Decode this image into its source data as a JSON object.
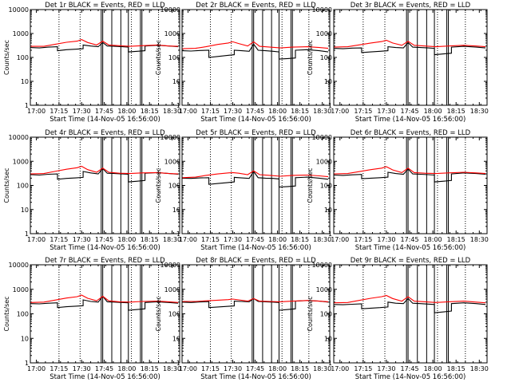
{
  "chart_data": [
    {
      "type": "line",
      "title": "Det 1r BLACK = Events, RED = LLD",
      "xlabel": "Start Time (14-Nov-05 16:56:00)",
      "ylabel": "Counts/sec",
      "yscale": "log",
      "ylim": [
        1,
        10000
      ],
      "x_ticks": [
        "17:00",
        "17:15",
        "17:30",
        "17:45",
        "18:00",
        "18:15",
        "18:30"
      ],
      "y_ticks": [
        "1",
        "10",
        "100",
        "1000",
        "10000"
      ],
      "series": [
        {
          "color": "#000000",
          "x": [
            "16:56",
            "17:02",
            "17:08",
            "17:14",
            "17:14",
            "17:20",
            "17:26",
            "17:31",
            "17:31",
            "17:36",
            "17:41",
            "17:44",
            "17:47",
            "17:52",
            "17:57",
            "18:01",
            "18:01",
            "18:07",
            "18:12",
            "18:12",
            "18:20",
            "18:28",
            "18:34"
          ],
          "y": [
            260,
            250,
            270,
            280,
            190,
            210,
            220,
            230,
            330,
            300,
            280,
            420,
            300,
            290,
            280,
            270,
            170,
            180,
            190,
            300,
            320,
            300,
            280
          ]
        },
        {
          "color": "#ff0000",
          "x": [
            "16:56",
            "17:05",
            "17:12",
            "17:20",
            "17:27",
            "17:30",
            "17:34",
            "17:40",
            "17:44",
            "17:48",
            "17:55",
            "18:02",
            "18:10",
            "18:20",
            "18:28",
            "18:34"
          ],
          "y": [
            290,
            290,
            350,
            430,
            480,
            560,
            420,
            330,
            480,
            330,
            310,
            290,
            310,
            330,
            300,
            290
          ]
        }
      ]
    },
    {
      "type": "line",
      "title": "Det 2r BLACK = Events, RED = LLD",
      "xlabel": "Start Time (14-Nov-05 16:56:00)",
      "ylabel": "Counts/sec",
      "yscale": "log",
      "ylim": [
        1,
        10000
      ],
      "x_ticks": [
        "17:00",
        "17:15",
        "17:30",
        "17:45",
        "18:00",
        "18:15",
        "18:30"
      ],
      "y_ticks": [
        "1",
        "10",
        "100",
        "1000",
        "10000"
      ],
      "series": [
        {
          "color": "#000000",
          "x": [
            "16:56",
            "17:02",
            "17:08",
            "17:14",
            "17:14",
            "17:20",
            "17:26",
            "17:31",
            "17:31",
            "17:36",
            "17:41",
            "17:44",
            "17:47",
            "17:52",
            "17:57",
            "18:01",
            "18:01",
            "18:07",
            "18:12",
            "18:12",
            "18:20",
            "18:28",
            "18:34"
          ],
          "y": [
            190,
            185,
            195,
            200,
            100,
            110,
            120,
            130,
            200,
            190,
            180,
            360,
            200,
            190,
            180,
            170,
            85,
            90,
            95,
            200,
            210,
            190,
            170
          ]
        },
        {
          "color": "#ff0000",
          "x": [
            "16:56",
            "17:05",
            "17:12",
            "17:20",
            "17:27",
            "17:30",
            "17:34",
            "17:40",
            "17:44",
            "17:48",
            "17:55",
            "18:02",
            "18:10",
            "18:20",
            "18:28",
            "18:34"
          ],
          "y": [
            230,
            240,
            280,
            350,
            400,
            450,
            380,
            300,
            450,
            290,
            270,
            250,
            270,
            280,
            260,
            240
          ]
        }
      ]
    },
    {
      "type": "line",
      "title": "Det 3r BLACK = Events, RED = LLD",
      "xlabel": "Start Time (14-Nov-05 16:56:00)",
      "ylabel": "Counts/sec",
      "yscale": "log",
      "ylim": [
        1,
        10000
      ],
      "x_ticks": [
        "17:00",
        "17:15",
        "17:30",
        "17:45",
        "18:00",
        "18:15",
        "18:30"
      ],
      "y_ticks": [
        "1",
        "10",
        "100",
        "1000",
        "10000"
      ],
      "series": [
        {
          "color": "#000000",
          "x": [
            "16:56",
            "17:02",
            "17:08",
            "17:14",
            "17:14",
            "17:20",
            "17:26",
            "17:31",
            "17:31",
            "17:36",
            "17:41",
            "17:44",
            "17:47",
            "17:52",
            "17:57",
            "18:01",
            "18:01",
            "18:07",
            "18:12",
            "18:12",
            "18:20",
            "18:28",
            "18:34"
          ],
          "y": [
            240,
            230,
            245,
            250,
            160,
            170,
            180,
            190,
            280,
            260,
            250,
            420,
            270,
            260,
            250,
            240,
            130,
            140,
            150,
            270,
            290,
            270,
            250
          ]
        },
        {
          "color": "#ff0000",
          "x": [
            "16:56",
            "17:05",
            "17:12",
            "17:20",
            "17:27",
            "17:30",
            "17:34",
            "17:40",
            "17:44",
            "17:48",
            "17:55",
            "18:02",
            "18:10",
            "18:20",
            "18:28",
            "18:34"
          ],
          "y": [
            270,
            280,
            330,
            400,
            460,
            520,
            400,
            320,
            470,
            320,
            300,
            280,
            300,
            320,
            300,
            280
          ]
        }
      ]
    },
    {
      "type": "line",
      "title": "Det 4r BLACK = Events, RED = LLD",
      "xlabel": "Start Time (14-Nov-05 16:56:00)",
      "ylabel": "Counts/sec",
      "yscale": "log",
      "ylim": [
        1,
        10000
      ],
      "x_ticks": [
        "17:00",
        "17:15",
        "17:30",
        "17:45",
        "18:00",
        "18:15",
        "18:30"
      ],
      "y_ticks": [
        "1",
        "10",
        "100",
        "1000",
        "10000"
      ],
      "series": [
        {
          "color": "#000000",
          "x": [
            "16:56",
            "17:02",
            "17:08",
            "17:14",
            "17:14",
            "17:20",
            "17:26",
            "17:31",
            "17:31",
            "17:36",
            "17:41",
            "17:44",
            "17:47",
            "17:52",
            "17:57",
            "18:01",
            "18:01",
            "18:07",
            "18:12",
            "18:12",
            "18:20",
            "18:28",
            "18:34"
          ],
          "y": [
            280,
            270,
            290,
            300,
            180,
            195,
            205,
            215,
            380,
            330,
            300,
            500,
            320,
            310,
            300,
            290,
            140,
            150,
            160,
            320,
            340,
            310,
            290
          ]
        },
        {
          "color": "#ff0000",
          "x": [
            "16:56",
            "17:05",
            "17:12",
            "17:20",
            "17:27",
            "17:30",
            "17:34",
            "17:40",
            "17:44",
            "17:48",
            "17:55",
            "18:02",
            "18:10",
            "18:20",
            "18:28",
            "18:34"
          ],
          "y": [
            300,
            310,
            380,
            470,
            540,
            620,
            450,
            350,
            520,
            350,
            320,
            310,
            330,
            340,
            310,
            300
          ]
        }
      ]
    },
    {
      "type": "line",
      "title": "Det 5r BLACK = Events, RED = LLD",
      "xlabel": "Start Time (14-Nov-05 16:56:00)",
      "ylabel": "Counts/sec",
      "yscale": "log",
      "ylim": [
        1,
        10000
      ],
      "x_ticks": [
        "17:00",
        "17:15",
        "17:30",
        "17:45",
        "18:00",
        "18:15",
        "18:30"
      ],
      "y_ticks": [
        "1",
        "10",
        "100",
        "1000",
        "10000"
      ],
      "series": [
        {
          "color": "#000000",
          "x": [
            "16:56",
            "17:02",
            "17:08",
            "17:14",
            "17:14",
            "17:20",
            "17:26",
            "17:31",
            "17:31",
            "17:36",
            "17:41",
            "17:44",
            "17:47",
            "17:52",
            "17:57",
            "18:01",
            "18:01",
            "18:07",
            "18:12",
            "18:12",
            "18:20",
            "18:28",
            "18:34"
          ],
          "y": [
            200,
            195,
            205,
            210,
            110,
            120,
            130,
            140,
            215,
            205,
            195,
            380,
            210,
            200,
            195,
            185,
            85,
            90,
            95,
            210,
            220,
            200,
            180
          ]
        },
        {
          "color": "#ff0000",
          "x": [
            "16:56",
            "17:05",
            "17:12",
            "17:20",
            "17:27",
            "17:30",
            "17:34",
            "17:40",
            "17:44",
            "17:48",
            "17:55",
            "18:02",
            "18:10",
            "18:20",
            "18:28",
            "18:34"
          ],
          "y": [
            210,
            220,
            260,
            300,
            330,
            340,
            320,
            280,
            400,
            280,
            260,
            240,
            260,
            270,
            250,
            230
          ]
        }
      ]
    },
    {
      "type": "line",
      "title": "Det 6r BLACK = Events, RED = LLD",
      "xlabel": "Start Time (14-Nov-05 16:56:00)",
      "ylabel": "Counts/sec",
      "yscale": "log",
      "ylim": [
        1,
        10000
      ],
      "x_ticks": [
        "17:00",
        "17:15",
        "17:30",
        "17:45",
        "18:00",
        "18:15",
        "18:30"
      ],
      "y_ticks": [
        "1",
        "10",
        "100",
        "1000",
        "10000"
      ],
      "series": [
        {
          "color": "#000000",
          "x": [
            "16:56",
            "17:02",
            "17:08",
            "17:14",
            "17:14",
            "17:20",
            "17:26",
            "17:31",
            "17:31",
            "17:36",
            "17:41",
            "17:44",
            "17:47",
            "17:52",
            "17:57",
            "18:01",
            "18:01",
            "18:07",
            "18:12",
            "18:12",
            "18:20",
            "18:28",
            "18:34"
          ],
          "y": [
            270,
            260,
            275,
            285,
            190,
            200,
            210,
            220,
            350,
            310,
            290,
            480,
            300,
            290,
            280,
            270,
            140,
            150,
            160,
            300,
            330,
            310,
            290
          ]
        },
        {
          "color": "#ff0000",
          "x": [
            "16:56",
            "17:05",
            "17:12",
            "17:20",
            "17:27",
            "17:30",
            "17:34",
            "17:40",
            "17:44",
            "17:48",
            "17:55",
            "18:02",
            "18:10",
            "18:20",
            "18:28",
            "18:34"
          ],
          "y": [
            300,
            310,
            370,
            450,
            520,
            600,
            440,
            340,
            520,
            340,
            320,
            310,
            330,
            350,
            330,
            310
          ]
        }
      ]
    },
    {
      "type": "line",
      "title": "Det 7r BLACK = Events, RED = LLD",
      "xlabel": "Start Time (14-Nov-05 16:56:00)",
      "ylabel": "Counts/sec",
      "yscale": "log",
      "ylim": [
        1,
        10000
      ],
      "x_ticks": [
        "17:00",
        "17:15",
        "17:30",
        "17:45",
        "18:00",
        "18:15",
        "18:30"
      ],
      "y_ticks": [
        "1",
        "10",
        "100",
        "1000",
        "10000"
      ],
      "series": [
        {
          "color": "#000000",
          "x": [
            "16:56",
            "17:02",
            "17:08",
            "17:14",
            "17:14",
            "17:20",
            "17:26",
            "17:31",
            "17:31",
            "17:36",
            "17:41",
            "17:44",
            "17:47",
            "17:52",
            "17:57",
            "18:01",
            "18:01",
            "18:07",
            "18:12",
            "18:12",
            "18:20",
            "18:28",
            "18:34"
          ],
          "y": [
            260,
            255,
            270,
            280,
            180,
            195,
            205,
            215,
            370,
            320,
            300,
            520,
            310,
            300,
            290,
            280,
            140,
            150,
            160,
            290,
            310,
            290,
            270
          ]
        },
        {
          "color": "#ff0000",
          "x": [
            "16:56",
            "17:05",
            "17:12",
            "17:20",
            "17:27",
            "17:30",
            "17:34",
            "17:40",
            "17:44",
            "17:48",
            "17:55",
            "18:02",
            "18:10",
            "18:20",
            "18:28",
            "18:34"
          ],
          "y": [
            290,
            300,
            360,
            440,
            500,
            580,
            430,
            340,
            520,
            340,
            310,
            300,
            320,
            330,
            310,
            290
          ]
        }
      ]
    },
    {
      "type": "line",
      "title": "Det 8r BLACK = Events, RED = LLD",
      "xlabel": "Start Time (14-Nov-05 16:56:00)",
      "ylabel": "Counts/sec",
      "yscale": "log",
      "ylim": [
        1,
        10000
      ],
      "x_ticks": [
        "17:00",
        "17:15",
        "17:30",
        "17:45",
        "18:00",
        "18:15",
        "18:30"
      ],
      "y_ticks": [
        "1",
        "10",
        "100",
        "1000",
        "10000"
      ],
      "series": [
        {
          "color": "#000000",
          "x": [
            "16:56",
            "17:02",
            "17:08",
            "17:14",
            "17:14",
            "17:20",
            "17:26",
            "17:31",
            "17:31",
            "17:36",
            "17:41",
            "17:44",
            "17:47",
            "17:52",
            "17:57",
            "18:01",
            "18:01",
            "18:07",
            "18:12",
            "18:12",
            "18:20",
            "18:28",
            "18:34"
          ],
          "y": [
            300,
            290,
            305,
            315,
            180,
            190,
            200,
            210,
            330,
            320,
            310,
            420,
            320,
            310,
            300,
            290,
            140,
            150,
            160,
            330,
            350,
            330,
            300
          ]
        },
        {
          "color": "#ff0000",
          "x": [
            "16:56",
            "17:05",
            "17:12",
            "17:20",
            "17:27",
            "17:30",
            "17:34",
            "17:40",
            "17:44",
            "17:48",
            "17:55",
            "18:02",
            "18:10",
            "18:20",
            "18:28",
            "18:34"
          ],
          "y": [
            320,
            320,
            340,
            360,
            380,
            400,
            370,
            330,
            420,
            330,
            320,
            310,
            330,
            350,
            330,
            310
          ]
        }
      ]
    },
    {
      "type": "line",
      "title": "Det 9r BLACK = Events, RED = LLD",
      "xlabel": "Start Time (14-Nov-05 16:56:00)",
      "ylabel": "Counts/sec",
      "yscale": "log",
      "ylim": [
        1,
        10000
      ],
      "x_ticks": [
        "17:00",
        "17:15",
        "17:30",
        "17:45",
        "18:00",
        "18:15",
        "18:30"
      ],
      "y_ticks": [
        "1",
        "10",
        "100",
        "1000",
        "10000"
      ],
      "series": [
        {
          "color": "#000000",
          "x": [
            "16:56",
            "17:02",
            "17:08",
            "17:14",
            "17:14",
            "17:20",
            "17:26",
            "17:31",
            "17:31",
            "17:36",
            "17:41",
            "17:44",
            "17:47",
            "17:52",
            "17:57",
            "18:01",
            "18:01",
            "18:07",
            "18:12",
            "18:12",
            "18:20",
            "18:28",
            "18:34"
          ],
          "y": [
            240,
            235,
            245,
            255,
            160,
            170,
            180,
            190,
            300,
            270,
            260,
            420,
            270,
            260,
            250,
            240,
            110,
            120,
            130,
            260,
            280,
            260,
            240
          ]
        },
        {
          "color": "#ff0000",
          "x": [
            "16:56",
            "17:05",
            "17:12",
            "17:20",
            "17:27",
            "17:30",
            "17:34",
            "17:40",
            "17:44",
            "17:48",
            "17:55",
            "18:02",
            "18:10",
            "18:20",
            "18:28",
            "18:34"
          ],
          "y": [
            280,
            290,
            350,
            430,
            500,
            560,
            420,
            330,
            500,
            330,
            310,
            290,
            310,
            330,
            300,
            280
          ]
        }
      ]
    }
  ]
}
